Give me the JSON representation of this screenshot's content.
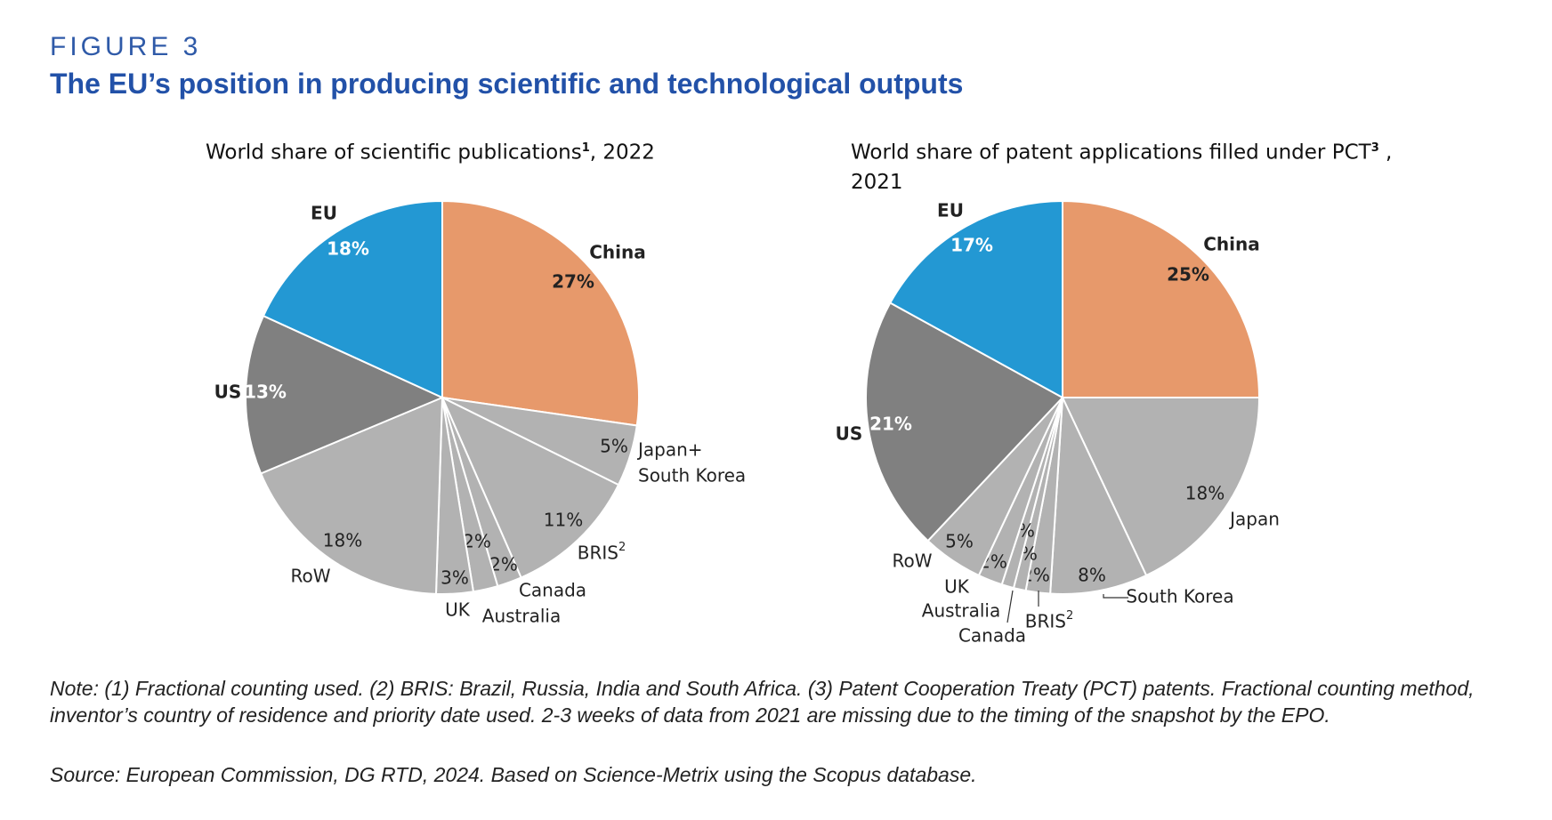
{
  "figure_label": "FIGURE 3",
  "figure_title": "The EU’s position in producing scientific and technological outputs",
  "note_line1": "Note: (1) Fractional counting used. (2) BRIS: Brazil, Russia, India and South Africa. (3) Patent Cooperation Treaty (PCT) patents. Fractional counting method,",
  "note_line2": "inventor’s country of residence and priority date used. 2-3 weeks of data from 2021 are missing due to the timing of the snapshot by the EPO.",
  "source": "Source: European Commission, DG RTD, 2024. Based on Science-Metrix using the Scopus database.",
  "colors": {
    "eu": "#2398d3",
    "china": "#e7996b",
    "us": "#808080",
    "other": "#b2b2b2",
    "title_blue": "#2251a8"
  },
  "chart_data": [
    {
      "type": "pie",
      "title_main": "World share of scientific publications",
      "title_sup": "1",
      "title_suffix": ", 2022",
      "slices": [
        {
          "label": "China",
          "value": 27,
          "pct": "27%"
        },
        {
          "label": "Japan+ South Korea",
          "label_lines": [
            "Japan+",
            "South Korea"
          ],
          "value": 5,
          "pct": "5%"
        },
        {
          "label": "BRIS",
          "label_sup": "2",
          "value": 11,
          "pct": "11%"
        },
        {
          "label": "Canada",
          "value": 2,
          "pct": "2%"
        },
        {
          "label": "Australia",
          "value": 2,
          "pct": "2%"
        },
        {
          "label": "UK",
          "value": 3,
          "pct": "3%"
        },
        {
          "label": "RoW",
          "value": 18,
          "pct": "18%"
        },
        {
          "label": "US",
          "value": 13,
          "pct": "13%"
        },
        {
          "label": "EU",
          "value": 18,
          "pct": "18%"
        }
      ]
    },
    {
      "type": "pie",
      "title_main": "World share of patent applications filled under PCT",
      "title_sup": "3",
      "title_suffix": " ,",
      "title_line2": "2021",
      "slices": [
        {
          "label": "China",
          "value": 25,
          "pct": "25%"
        },
        {
          "label": "Japan",
          "value": 18,
          "pct": "18%"
        },
        {
          "label": "South Korea",
          "value": 8,
          "pct": "8%"
        },
        {
          "label": "BRIS",
          "label_sup": "2",
          "value": 2,
          "pct": "2%"
        },
        {
          "label": "Canada",
          "value": 1,
          "pct": "1%"
        },
        {
          "label": "Australia",
          "value": 1,
          "pct": "1%"
        },
        {
          "label": "UK",
          "value": 2,
          "pct": "2%"
        },
        {
          "label": "RoW",
          "value": 5,
          "pct": "5%"
        },
        {
          "label": "US",
          "value": 21,
          "pct": "21%"
        },
        {
          "label": "EU",
          "value": 17,
          "pct": "17%"
        }
      ]
    }
  ]
}
